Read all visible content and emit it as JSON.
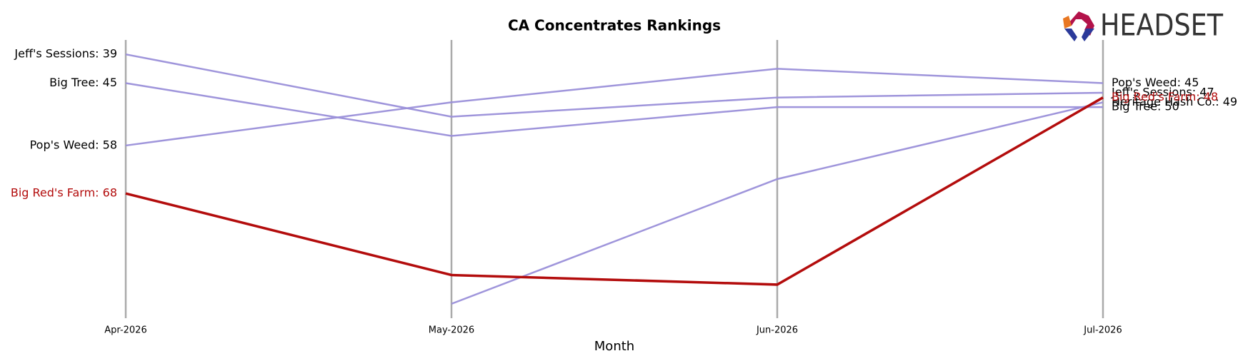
{
  "chart_data": {
    "type": "bump",
    "title": "CA Concentrates Rankings",
    "x_label": "Month",
    "logo": "HEADSET",
    "categories": [
      "Apr-2026",
      "May-2026",
      "Jun-2026",
      "Jul-2026"
    ],
    "ylim": [
      36,
      94
    ],
    "invert_y": true,
    "series": [
      {
        "color": "#9a8fd9",
        "highlight": false,
        "values": [
          39,
          52,
          48,
          47
        ],
        "value_labels": [
          "Jeff's Sessions: 39",
          null,
          null,
          "Jeff's Sessions: 47"
        ]
      },
      {
        "color": "#9a8fd9",
        "highlight": false,
        "values": [
          45,
          56,
          50,
          50
        ],
        "value_labels": [
          "Big Tree: 45",
          null,
          null,
          "Big Tree: 50"
        ]
      },
      {
        "color": "#9a8fd9",
        "highlight": false,
        "values": [
          58,
          49,
          42,
          45
        ],
        "value_labels": [
          "Pop's Weed: 58",
          null,
          null,
          "Pop's Weed: 45"
        ]
      },
      {
        "color": "#9a8fd9",
        "highlight": false,
        "values": [
          null,
          91,
          65,
          49
        ],
        "value_labels": [
          null,
          null,
          null,
          "Heritage Hash Co.: 49"
        ]
      },
      {
        "color": "#b30c0c",
        "highlight": true,
        "values": [
          68,
          85,
          87,
          48
        ],
        "value_labels": [
          "Big Red's Farm: 68",
          null,
          null,
          "Big Red's Farm: 48"
        ]
      }
    ]
  }
}
